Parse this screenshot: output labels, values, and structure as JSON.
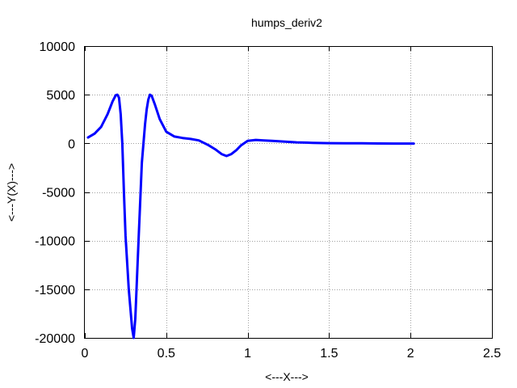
{
  "chart_data": {
    "type": "line",
    "title": "humps_deriv2",
    "xlabel": "<---X--->",
    "ylabel": "<---Y(X)--->",
    "xlim": [
      0,
      2.5
    ],
    "ylim": [
      -20000,
      10000
    ],
    "xticks": [
      0,
      0.5,
      1,
      1.5,
      2,
      2.5
    ],
    "xtick_labels": [
      "0",
      "0.5",
      "1",
      "1.5",
      "2",
      "2.5"
    ],
    "yticks": [
      -20000,
      -15000,
      -10000,
      -5000,
      0,
      5000,
      10000
    ],
    "ytick_labels": [
      "-20000",
      "-15000",
      "-10000",
      "-5000",
      "0",
      "5000",
      "10000"
    ],
    "grid": true,
    "series": [
      {
        "color": "#0000ff",
        "x": [
          0.02,
          0.06,
          0.1,
          0.14,
          0.17,
          0.19,
          0.2,
          0.21,
          0.22,
          0.23,
          0.24,
          0.25,
          0.27,
          0.29,
          0.3,
          0.31,
          0.33,
          0.35,
          0.37,
          0.38,
          0.39,
          0.4,
          0.41,
          0.43,
          0.46,
          0.5,
          0.55,
          0.6,
          0.65,
          0.7,
          0.73,
          0.76,
          0.8,
          0.84,
          0.87,
          0.9,
          0.93,
          0.96,
          1.0,
          1.05,
          1.1,
          1.15,
          1.2,
          1.3,
          1.4,
          1.5,
          1.6,
          1.7,
          1.8,
          1.9,
          2.02
        ],
        "y": [
          600,
          1000,
          1700,
          3000,
          4300,
          4950,
          5000,
          4700,
          3000,
          0,
          -5000,
          -9500,
          -15000,
          -19000,
          -20000,
          -18000,
          -10000,
          -2000,
          2000,
          3500,
          4500,
          5000,
          4900,
          4000,
          2500,
          1200,
          700,
          550,
          450,
          300,
          50,
          -200,
          -600,
          -1100,
          -1300,
          -1100,
          -700,
          -200,
          250,
          350,
          300,
          250,
          200,
          100,
          50,
          20,
          10,
          0,
          -10,
          -20,
          -20
        ]
      }
    ]
  }
}
